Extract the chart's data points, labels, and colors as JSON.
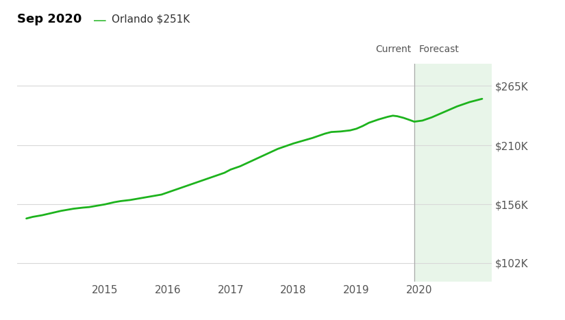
{
  "title": "Sep 2020",
  "legend_label": "Orlando $251K",
  "line_color": "#1db31d",
  "forecast_bg_color": "#e8f5e9",
  "current_line_color": "#aaaaaa",
  "ytick_labels": [
    "$102K",
    "$156K",
    "$210K",
    "$265K"
  ],
  "ytick_values": [
    102000,
    156000,
    210000,
    265000
  ],
  "ylim": [
    85000,
    285000
  ],
  "xlim_start": 2013.6,
  "xlim_end": 2021.15,
  "xtick_years": [
    2015,
    2016,
    2017,
    2018,
    2019,
    2020
  ],
  "current_x": 2019.92,
  "forecast_x_end": 2021.15,
  "current_label": "Current",
  "forecast_label": "Forecast",
  "x_data": [
    2013.75,
    2013.85,
    2014.0,
    2014.15,
    2014.3,
    2014.5,
    2014.65,
    2014.75,
    2014.85,
    2015.0,
    2015.15,
    2015.25,
    2015.4,
    2015.5,
    2015.6,
    2015.75,
    2015.9,
    2016.0,
    2016.15,
    2016.3,
    2016.45,
    2016.6,
    2016.75,
    2016.9,
    2017.0,
    2017.15,
    2017.3,
    2017.45,
    2017.6,
    2017.75,
    2017.9,
    2018.0,
    2018.15,
    2018.3,
    2018.4,
    2018.5,
    2018.6,
    2018.75,
    2018.9,
    2019.0,
    2019.1,
    2019.2,
    2019.35,
    2019.5,
    2019.58,
    2019.65,
    2019.75,
    2019.85,
    2019.92,
    2020.05,
    2020.2,
    2020.4,
    2020.6,
    2020.8,
    2021.0
  ],
  "y_data": [
    143000,
    144500,
    146000,
    148000,
    150000,
    152000,
    153000,
    153500,
    154500,
    156000,
    158000,
    159000,
    160000,
    161000,
    162000,
    163500,
    165000,
    167000,
    170000,
    173000,
    176000,
    179000,
    182000,
    185000,
    188000,
    191000,
    195000,
    199000,
    203000,
    207000,
    210000,
    212000,
    214500,
    217000,
    219000,
    221000,
    222500,
    223000,
    224000,
    225500,
    228000,
    231000,
    234000,
    236500,
    237500,
    237000,
    235500,
    233500,
    232000,
    233000,
    236000,
    241000,
    246000,
    250000,
    253000
  ]
}
